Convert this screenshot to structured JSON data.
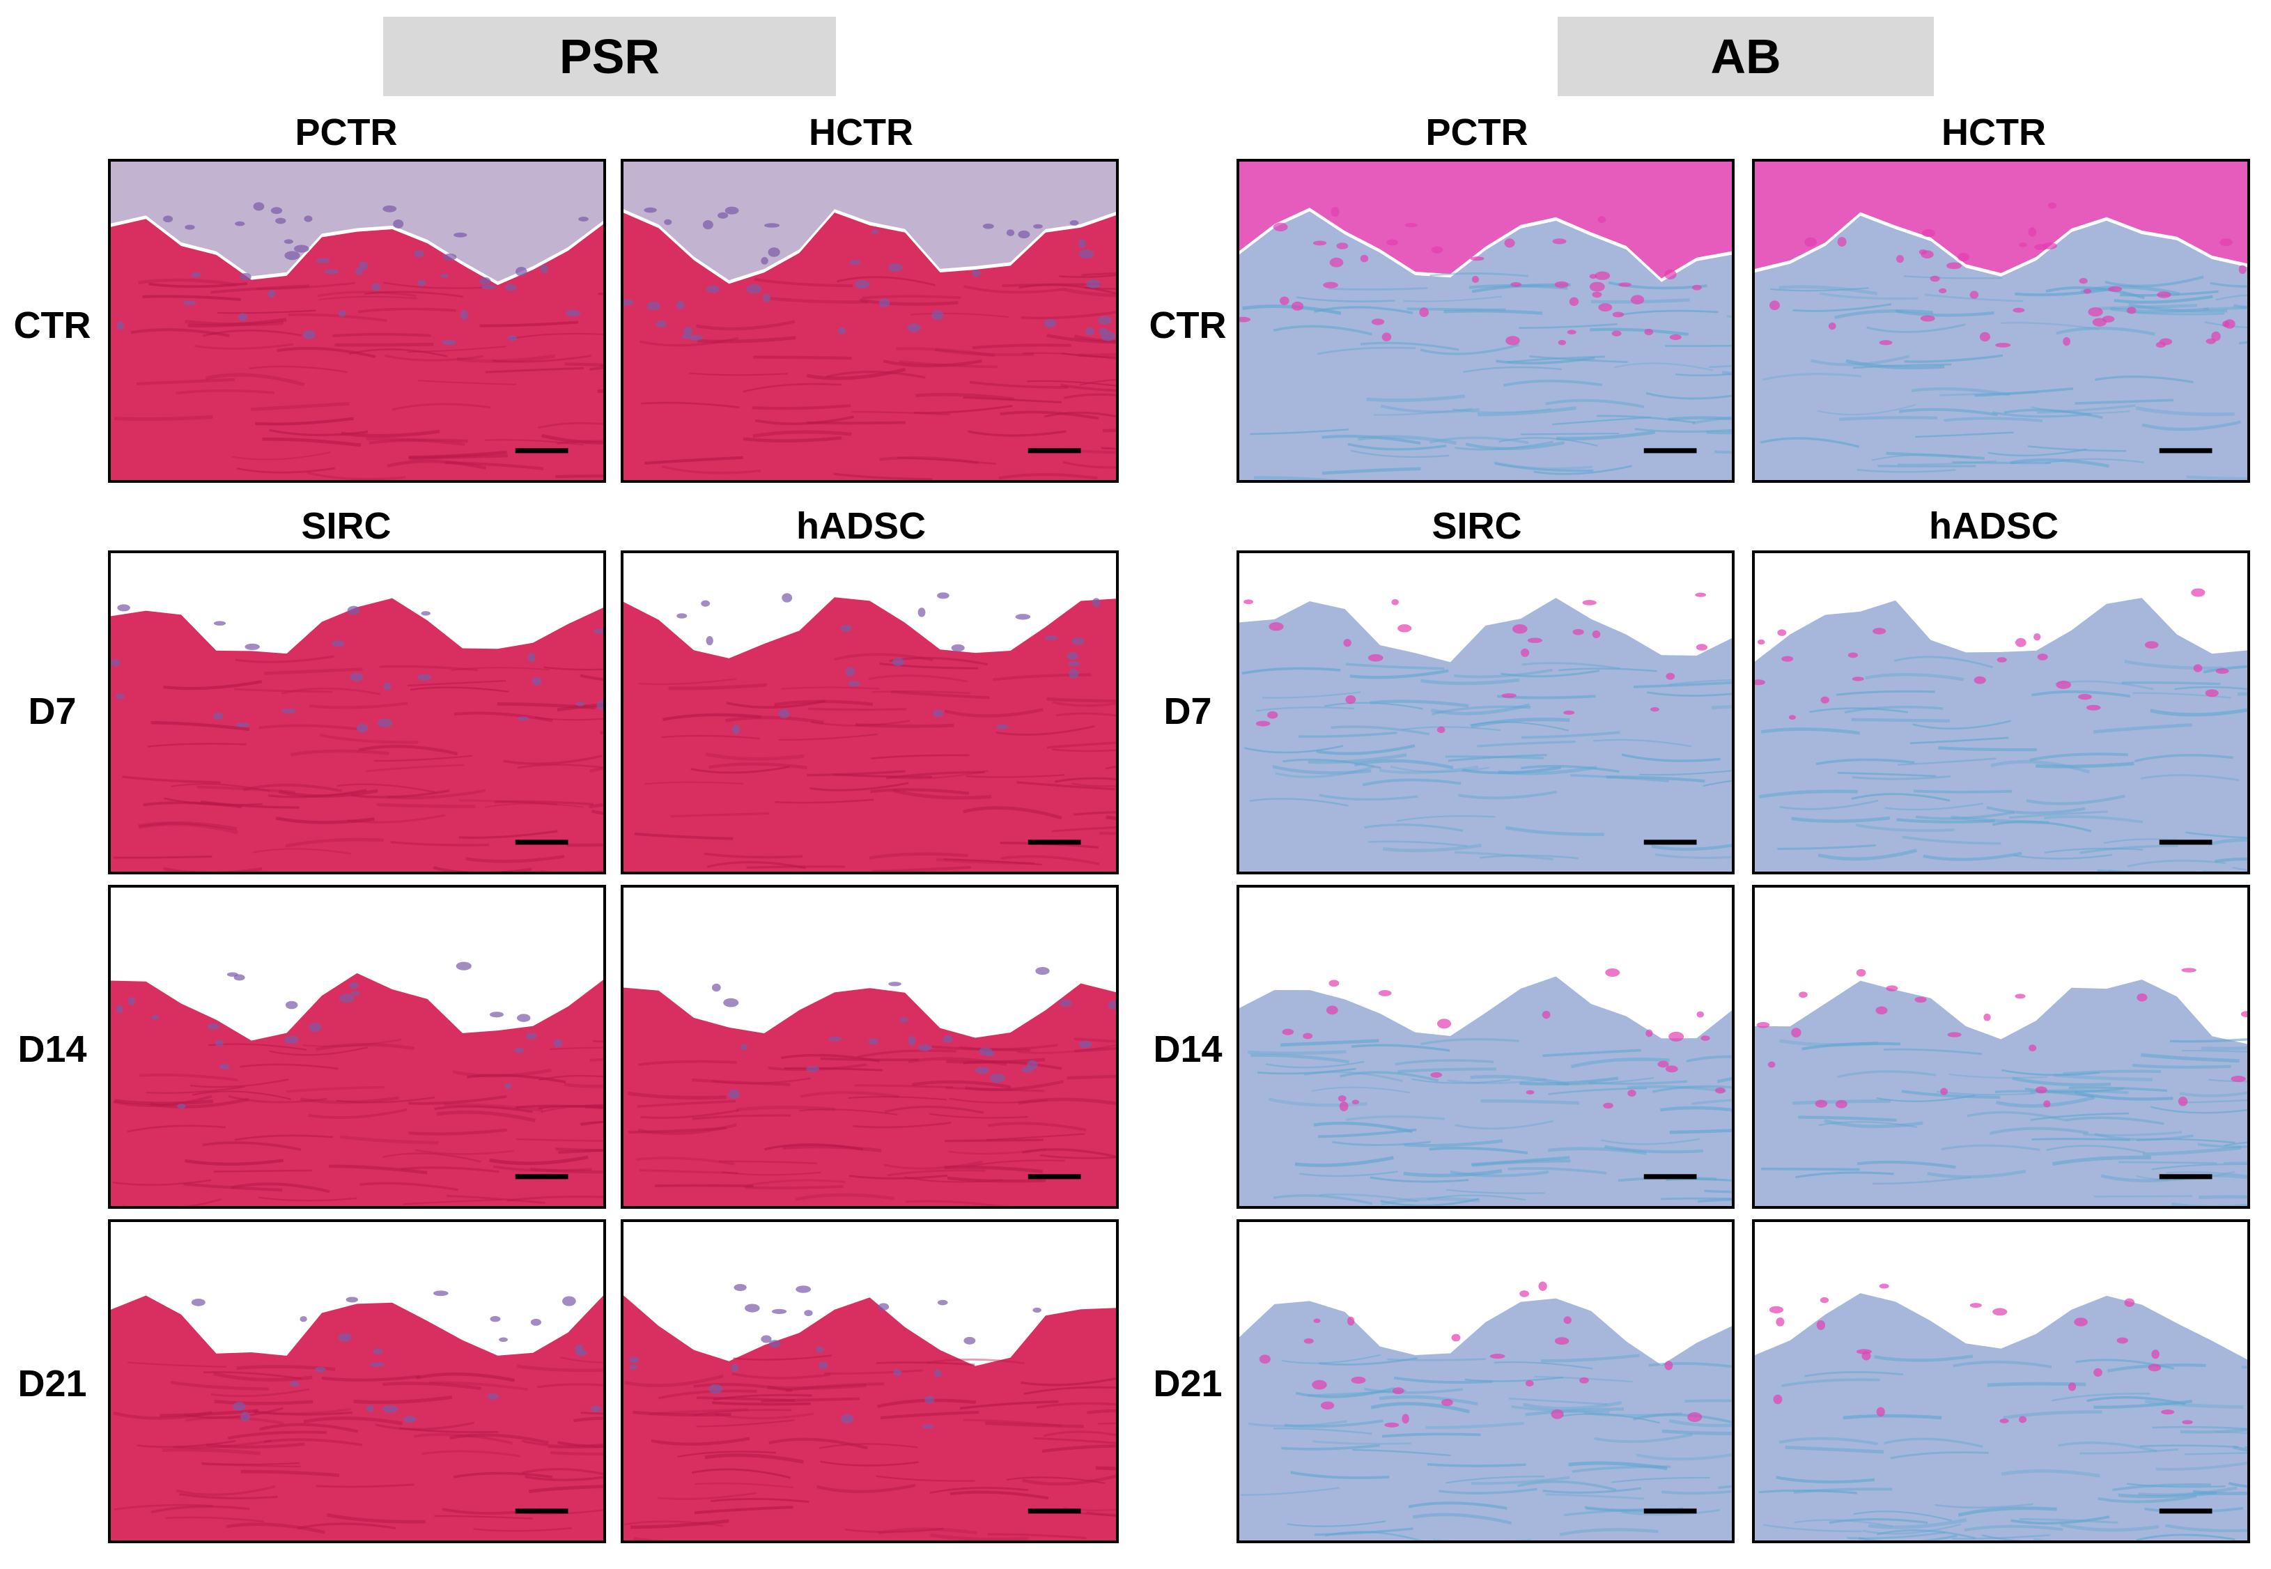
{
  "sections": [
    {
      "title": "PSR",
      "stain": "psr",
      "columns": [
        [
          "PCTR",
          "HCTR"
        ],
        [
          "SIRC",
          "hADSC"
        ]
      ]
    },
    {
      "title": "AB",
      "stain": "ab",
      "columns": [
        [
          "PCTR",
          "HCTR"
        ],
        [
          "SIRC",
          "hADSC"
        ]
      ]
    }
  ],
  "rows": [
    {
      "label": "CTR",
      "kind": "control"
    },
    {
      "label": "D7",
      "kind": "d7"
    },
    {
      "label": "D14",
      "kind": "d14"
    },
    {
      "label": "D21",
      "kind": "d21"
    }
  ],
  "colors": {
    "psr_tissue": "#d92f60",
    "psr_tissue_dark": "#b8174a",
    "psr_epithelium": "#b7a6c8",
    "ab_tissue": "#a7b7dc",
    "ab_tissue_blue": "#5fa6cf",
    "ab_cells": "#e23fb0",
    "scale_bar": "#000000"
  },
  "scale_bar": "scale-bar-icon"
}
